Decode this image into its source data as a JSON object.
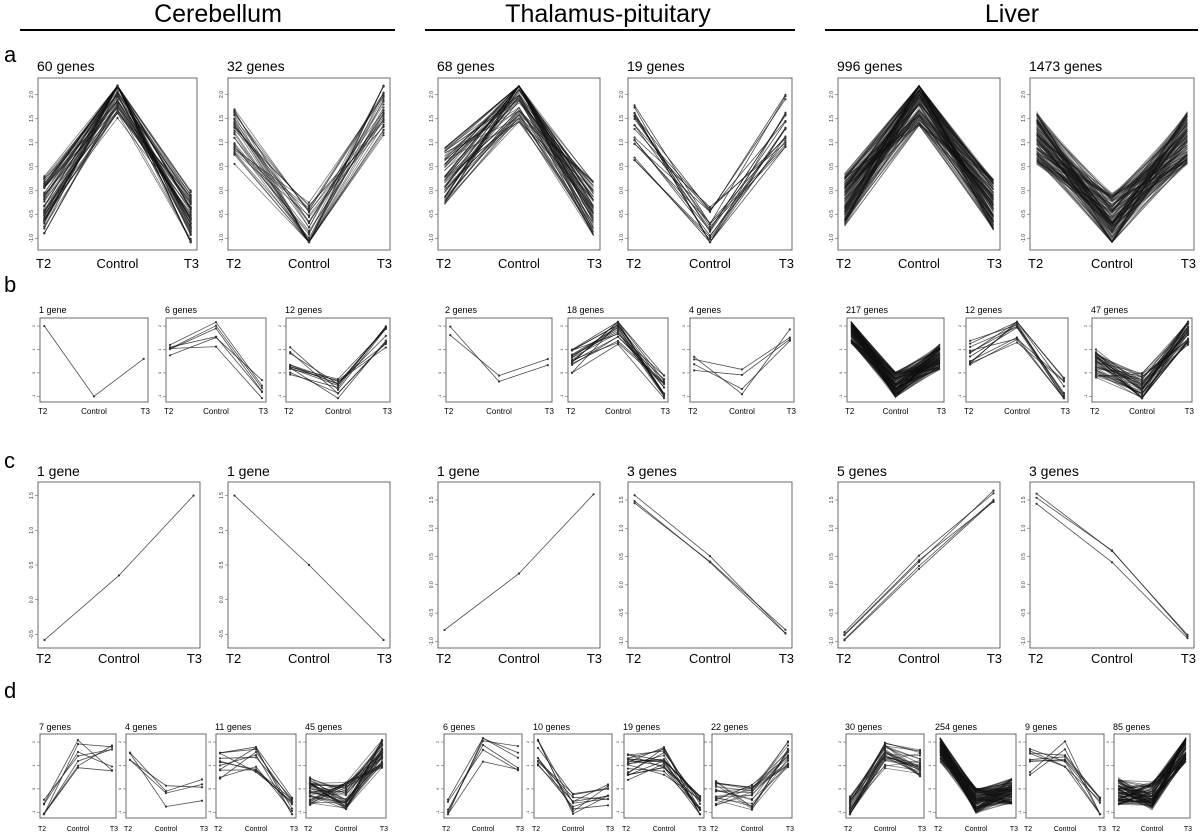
{
  "tissues": [
    "Cerebellum",
    "Thalamus-pituitary",
    "Liver"
  ],
  "row_labels": [
    "a",
    "b",
    "c",
    "d"
  ],
  "x_categories": [
    "T2",
    "Control",
    "T3"
  ],
  "y_ticks_main": [
    "-1.0",
    "-0.5",
    "0.0",
    "0.5",
    "1.0",
    "1.5",
    "2.0"
  ],
  "y_ticks_small": [
    "-1",
    "0",
    "1",
    "2"
  ],
  "chart_data": [
    {
      "type": "line",
      "group": "Cerebellum",
      "row": "a",
      "title": "60 genes",
      "categories": [
        "T2",
        "Control",
        "T3"
      ],
      "genes": 60,
      "mean": [
        -0.3,
        2.1,
        -0.6
      ]
    },
    {
      "type": "line",
      "group": "Cerebellum",
      "row": "a",
      "title": "32 genes",
      "categories": [
        "T2",
        "Control",
        "T3"
      ],
      "genes": 32,
      "mean": [
        1.1,
        -0.8,
        1.7
      ]
    },
    {
      "type": "line",
      "group": "Thalamus-pituitary",
      "row": "a",
      "title": "68 genes",
      "categories": [
        "T2",
        "Control",
        "T3"
      ],
      "genes": 68,
      "mean": [
        0.3,
        2.0,
        -0.4
      ]
    },
    {
      "type": "line",
      "group": "Thalamus-pituitary",
      "row": "a",
      "title": "19 genes",
      "categories": [
        "T2",
        "Control",
        "T3"
      ],
      "genes": 19,
      "mean": [
        1.2,
        -0.8,
        1.5
      ]
    },
    {
      "type": "line",
      "group": "Liver",
      "row": "a",
      "title": "996 genes",
      "categories": [
        "T2",
        "Control",
        "T3"
      ],
      "genes": 996,
      "mean": [
        -0.2,
        1.9,
        -0.3
      ]
    },
    {
      "type": "line",
      "group": "Liver",
      "row": "a",
      "title": "1473 genes",
      "categories": [
        "T2",
        "Control",
        "T3"
      ],
      "genes": 1473,
      "mean": [
        1.1,
        -0.6,
        1.1
      ]
    },
    {
      "type": "line",
      "group": "Cerebellum",
      "row": "b",
      "title": "1 gene",
      "categories": [
        "T2",
        "Control",
        "T3"
      ],
      "genes": 1,
      "mean": [
        2.0,
        -1.0,
        0.6
      ]
    },
    {
      "type": "line",
      "group": "Cerebellum",
      "row": "b",
      "title": "6 genes",
      "categories": [
        "T2",
        "Control",
        "T3"
      ],
      "genes": 6,
      "mean": [
        0.8,
        1.7,
        -0.8
      ]
    },
    {
      "type": "line",
      "group": "Cerebellum",
      "row": "b",
      "title": "12 genes",
      "categories": [
        "T2",
        "Control",
        "T3"
      ],
      "genes": 12,
      "mean": [
        0.5,
        -0.8,
        1.6
      ]
    },
    {
      "type": "line",
      "group": "Thalamus-pituitary",
      "row": "b",
      "title": "2 genes",
      "categories": [
        "T2",
        "Control",
        "T3"
      ],
      "genes": 2,
      "mean": [
        1.6,
        -0.7,
        0.8
      ]
    },
    {
      "type": "line",
      "group": "Thalamus-pituitary",
      "row": "b",
      "title": "18 genes",
      "categories": [
        "T2",
        "Control",
        "T3"
      ],
      "genes": 18,
      "mean": [
        0.6,
        1.8,
        -0.7
      ]
    },
    {
      "type": "line",
      "group": "Thalamus-pituitary",
      "row": "b",
      "title": "4 genes",
      "categories": [
        "T2",
        "Control",
        "T3"
      ],
      "genes": 4,
      "mean": [
        0.5,
        -0.4,
        1.7
      ]
    },
    {
      "type": "line",
      "group": "Liver",
      "row": "b",
      "title": "217 genes",
      "categories": [
        "T2",
        "Control",
        "T3"
      ],
      "genes": 217,
      "mean": [
        1.8,
        -0.5,
        0.7
      ]
    },
    {
      "type": "line",
      "group": "Liver",
      "row": "b",
      "title": "12 genes",
      "categories": [
        "T2",
        "Control",
        "T3"
      ],
      "genes": 12,
      "mean": [
        0.9,
        1.8,
        -0.8
      ]
    },
    {
      "type": "line",
      "group": "Liver",
      "row": "b",
      "title": "47 genes",
      "categories": [
        "T2",
        "Control",
        "T3"
      ],
      "genes": 47,
      "mean": [
        0.4,
        -0.6,
        1.8
      ]
    },
    {
      "type": "line",
      "group": "Cerebellum",
      "row": "c",
      "title": "1 gene",
      "categories": [
        "T2",
        "Control",
        "T3"
      ],
      "genes": 1,
      "mean": [
        -0.6,
        0.35,
        1.5
      ],
      "ylim": [
        -0.6,
        1.6
      ]
    },
    {
      "type": "line",
      "group": "Cerebellum",
      "row": "c",
      "title": "1 gene",
      "categories": [
        "T2",
        "Control",
        "T3"
      ],
      "genes": 1,
      "mean": [
        1.5,
        0.5,
        -0.6
      ],
      "ylim": [
        -0.6,
        1.6
      ]
    },
    {
      "type": "line",
      "group": "Thalamus-pituitary",
      "row": "c",
      "title": "1 gene",
      "categories": [
        "T2",
        "Control",
        "T3"
      ],
      "genes": 1,
      "mean": [
        -0.8,
        0.2,
        1.6
      ],
      "ylim": [
        -1.0,
        1.7
      ]
    },
    {
      "type": "line",
      "group": "Thalamus-pituitary",
      "row": "c",
      "title": "3 genes",
      "categories": [
        "T2",
        "Control",
        "T3"
      ],
      "genes": 3,
      "mean": [
        1.55,
        0.4,
        -0.9
      ],
      "ylim": [
        -1.0,
        1.7
      ]
    },
    {
      "type": "line",
      "group": "Liver",
      "row": "c",
      "title": "5 genes",
      "categories": [
        "T2",
        "Control",
        "T3"
      ],
      "genes": 5,
      "mean": [
        -0.9,
        0.4,
        1.55
      ],
      "ylim": [
        -1.0,
        1.7
      ]
    },
    {
      "type": "line",
      "group": "Liver",
      "row": "c",
      "title": "3 genes",
      "categories": [
        "T2",
        "Control",
        "T3"
      ],
      "genes": 3,
      "mean": [
        1.55,
        0.5,
        -0.9
      ],
      "ylim": [
        -1.0,
        1.7
      ]
    },
    {
      "type": "line",
      "group": "Cerebellum",
      "row": "d",
      "title": "7 genes",
      "categories": [
        "T2",
        "Control",
        "T3"
      ],
      "genes": 7,
      "mean": [
        -0.9,
        1.5,
        1.3
      ]
    },
    {
      "type": "line",
      "group": "Cerebellum",
      "row": "d",
      "title": "4 genes",
      "categories": [
        "T2",
        "Control",
        "T3"
      ],
      "genes": 4,
      "mean": [
        1.7,
        -0.3,
        -0.2
      ]
    },
    {
      "type": "line",
      "group": "Cerebellum",
      "row": "d",
      "title": "11 genes",
      "categories": [
        "T2",
        "Control",
        "T3"
      ],
      "genes": 11,
      "mean": [
        1.0,
        1.3,
        -0.9
      ]
    },
    {
      "type": "line",
      "group": "Cerebellum",
      "row": "d",
      "title": "45 genes",
      "categories": [
        "T2",
        "Control",
        "T3"
      ],
      "genes": 45,
      "mean": [
        -0.1,
        -0.3,
        1.5
      ]
    },
    {
      "type": "line",
      "group": "Thalamus-pituitary",
      "row": "d",
      "title": "6 genes",
      "categories": [
        "T2",
        "Control",
        "T3"
      ],
      "genes": 6,
      "mean": [
        -0.9,
        1.6,
        1.3
      ]
    },
    {
      "type": "line",
      "group": "Thalamus-pituitary",
      "row": "d",
      "title": "10 genes",
      "categories": [
        "T2",
        "Control",
        "T3"
      ],
      "genes": 10,
      "mean": [
        1.5,
        -0.6,
        -0.3
      ]
    },
    {
      "type": "line",
      "group": "Thalamus-pituitary",
      "row": "d",
      "title": "19 genes",
      "categories": [
        "T2",
        "Control",
        "T3"
      ],
      "genes": 19,
      "mean": [
        0.9,
        1.2,
        -0.9
      ]
    },
    {
      "type": "line",
      "group": "Thalamus-pituitary",
      "row": "d",
      "title": "22 genes",
      "categories": [
        "T2",
        "Control",
        "T3"
      ],
      "genes": 22,
      "mean": [
        -0.2,
        -0.4,
        1.5
      ]
    },
    {
      "type": "line",
      "group": "Liver",
      "row": "d",
      "title": "30 genes",
      "categories": [
        "T2",
        "Control",
        "T3"
      ],
      "genes": 30,
      "mean": [
        -0.9,
        1.4,
        1.1
      ]
    },
    {
      "type": "line",
      "group": "Liver",
      "row": "d",
      "title": "254 genes",
      "categories": [
        "T2",
        "Control",
        "T3"
      ],
      "genes": 254,
      "mean": [
        1.7,
        -0.5,
        -0.1
      ]
    },
    {
      "type": "line",
      "group": "Liver",
      "row": "d",
      "title": "9 genes",
      "categories": [
        "T2",
        "Control",
        "T3"
      ],
      "genes": 9,
      "mean": [
        1.2,
        1.5,
        -0.9
      ]
    },
    {
      "type": "line",
      "group": "Liver",
      "row": "d",
      "title": "85 genes",
      "categories": [
        "T2",
        "Control",
        "T3"
      ],
      "genes": 85,
      "mean": [
        -0.1,
        -0.3,
        1.7
      ]
    }
  ]
}
